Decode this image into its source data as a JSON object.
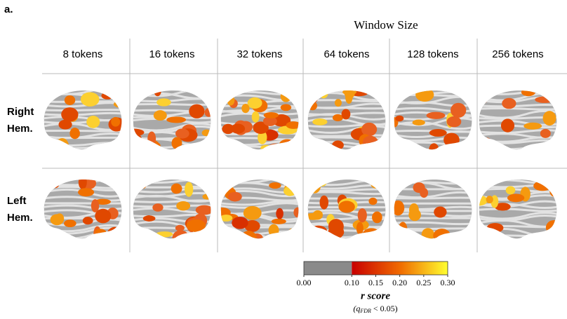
{
  "panel_label": "a.",
  "title": "Window Size",
  "columns": [
    "8 tokens",
    "16 tokens",
    "32 tokens",
    "64 tokens",
    "128 tokens",
    "256 tokens"
  ],
  "rows": [
    [
      "Right",
      "Hem."
    ],
    [
      "Left",
      "Hem."
    ]
  ],
  "colorbar": {
    "ticks": [
      {
        "value": 0.0,
        "label": "0.00"
      },
      {
        "value": 0.1,
        "label": "0.10"
      },
      {
        "value": 0.15,
        "label": "0.15"
      },
      {
        "value": 0.2,
        "label": "0.20"
      },
      {
        "value": 0.25,
        "label": "0.25"
      },
      {
        "value": 0.3,
        "label": "0.30"
      }
    ],
    "label": "r score",
    "note": {
      "open": "(q",
      "sub": "FDR",
      "rest": " < 0.05)"
    }
  }
}
